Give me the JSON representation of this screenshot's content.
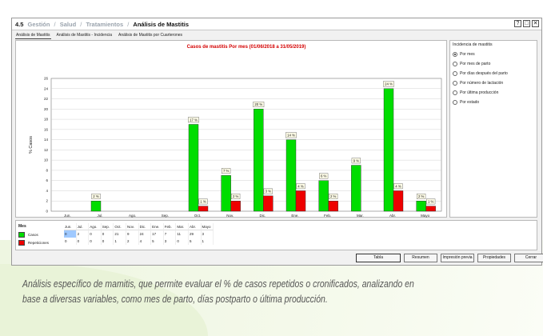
{
  "window": {
    "number": "4.5",
    "breadcrumb": [
      "Gestión",
      "Salud",
      "Tratamientos"
    ],
    "title": "Análisis de Mastitis",
    "controls": [
      "?",
      "□",
      "✕"
    ]
  },
  "tabs": [
    {
      "label": "Análisis de Mastitis",
      "active": true
    },
    {
      "label": "Análisis de Mastitis - Incidencia",
      "active": false
    },
    {
      "label": "Análisis de Mastitis por Cuarterones",
      "active": false
    }
  ],
  "side_panel": {
    "title": "Incidencia de mastitis",
    "options": [
      {
        "label": "Por mes",
        "checked": true
      },
      {
        "label": "Por mes de parto",
        "checked": false
      },
      {
        "label": "Por días después del parto",
        "checked": false
      },
      {
        "label": "Por número de lactación",
        "checked": false
      },
      {
        "label": "Por última producción",
        "checked": false
      },
      {
        "label": "Por estado",
        "checked": false
      }
    ]
  },
  "chart_data": {
    "type": "bar",
    "title": "Casos de mastitis Por mes (01/06/2018 a 31/05/2019)",
    "xlabel": "",
    "ylabel": "% Casos",
    "ylim": [
      0,
      26
    ],
    "yticks": [
      0,
      2,
      4,
      6,
      8,
      10,
      12,
      14,
      16,
      18,
      20,
      22,
      24,
      26
    ],
    "categories": [
      "Jun.",
      "Jul.",
      "Ago.",
      "Sep.",
      "Oct.",
      "Nov.",
      "Dic.",
      "Ene.",
      "Feb.",
      "Mar.",
      "Abr.",
      "Mayo"
    ],
    "series": [
      {
        "name": "Casos",
        "color": "#00dd00",
        "values": [
          0,
          2,
          0,
          0,
          17,
          7,
          20,
          14,
          6,
          9,
          24,
          2
        ],
        "labels": [
          "",
          "2 %",
          "",
          "",
          "17 %",
          "7 %",
          "20 %",
          "14 %",
          "6 %",
          "9 %",
          "24 %",
          "2 %"
        ]
      },
      {
        "name": "Repeticiones",
        "color": "#ee0000",
        "values": [
          0,
          0,
          0,
          0,
          1,
          2,
          3,
          4,
          2,
          0,
          4,
          1
        ],
        "labels": [
          "",
          "",
          "",
          "",
          "1 %",
          "2 %",
          "3 %",
          "4 %",
          "2 %",
          "",
          "4 %",
          "1 %"
        ]
      }
    ],
    "grid": true,
    "colors": {
      "title": "#d40000",
      "grid": "#c8c8c8"
    }
  },
  "table": {
    "legend_title": "Mes",
    "months": [
      "Jun.",
      "Jul.",
      "Ago.",
      "Sep.",
      "Oct.",
      "Nov.",
      "Dic.",
      "Ene.",
      "Feb.",
      "Mar.",
      "Abr.",
      "Mayo"
    ],
    "rows": [
      {
        "label": "Casos",
        "color": "#00dd00",
        "values": [
          "0",
          "2",
          "0",
          "0",
          "21",
          "9",
          "24",
          "17",
          "7",
          "11",
          "29",
          "3"
        ]
      },
      {
        "label": "Repeticiones",
        "color": "#ee0000",
        "values": [
          "0",
          "0",
          "0",
          "0",
          "1",
          "2",
          "4",
          "5",
          "3",
          "0",
          "5",
          "1"
        ]
      }
    ]
  },
  "buttons": [
    {
      "label": "Tabla",
      "primary": true
    },
    {
      "label": "Resumen",
      "primary": false
    },
    {
      "label": "Impresión previa",
      "primary": false
    },
    {
      "label": "Propiedades",
      "primary": false
    },
    {
      "label": "Cerrar",
      "primary": false
    }
  ],
  "caption": "Análisis específico de mamitis, que permite evaluar el % de casos repetidos o cronificados, analizando en base a diversas variables, como mes de parto, días postparto o última producción."
}
